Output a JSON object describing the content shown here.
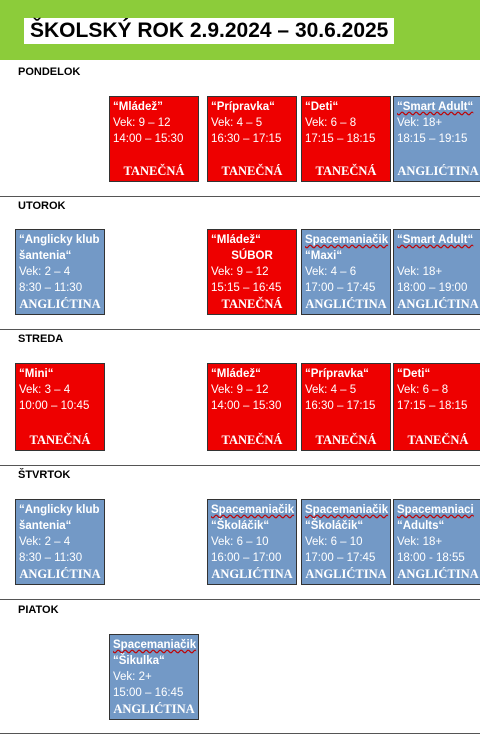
{
  "title": "ŠKOLSKÝ ROK 2.9.2024 – 30.6.2025",
  "days": [
    {
      "label": "PONDELOK",
      "classes": [
        {
          "name": "“Mládež”",
          "lines": [
            "Vek: 9 – 12",
            "14:00 – 15:30"
          ],
          "footer": "TANEČNÁ",
          "color": "red"
        },
        {
          "name": "“Prípravka“",
          "lines": [
            "Vek: 4 – 5",
            "16:30 – 17:15"
          ],
          "footer": "TANEČNÁ",
          "color": "red"
        },
        {
          "name": "“Deti“",
          "lines": [
            "Vek: 6 – 8",
            "17:15 – 18:15"
          ],
          "footer": "TANEČNÁ",
          "color": "red"
        },
        {
          "name": "“Smart Adult“",
          "lines": [
            "Vek: 18+",
            "18:15 – 19:15"
          ],
          "footer": "ANGLIĆTINA",
          "color": "blue"
        }
      ]
    },
    {
      "label": "UTOROK",
      "classes": [
        {
          "name": "“Anglicky klub",
          "lines": [
            "šantenia“",
            "Vek: 2 – 4",
            "8:30 – 11:30"
          ],
          "footer": "ANGLIĆTINA",
          "color": "blue"
        },
        {
          "name": "“Mládež“",
          "lines": [
            "SÚBOR",
            "Vek: 9 – 12",
            "15:15 – 16:45"
          ],
          "footer": "TANEČNÁ",
          "color": "red"
        },
        {
          "name": "Spacemaniačik",
          "lines": [
            "“Maxi“",
            "Vek: 4 – 6",
            "17:00 – 17:45"
          ],
          "footer": "ANGLIĆTINA",
          "color": "blue"
        },
        {
          "name": "“Smart Adult“",
          "lines": [
            "Vek: 18+",
            "18:00 – 19:00"
          ],
          "footer": "ANGLIĆTINA",
          "color": "blue"
        }
      ]
    },
    {
      "label": "STREDA",
      "classes": [
        {
          "name": "“Mini“",
          "lines": [
            "Vek: 3 – 4",
            "10:00 – 10:45"
          ],
          "footer": "TANEČNÁ",
          "color": "red"
        },
        {
          "name": "“Mládež“",
          "lines": [
            "Vek: 9 – 12",
            "14:00 – 15:30"
          ],
          "footer": "TANEČNÁ",
          "color": "red"
        },
        {
          "name": "“Prípravka“",
          "lines": [
            "Vek: 4 – 5",
            "16:30 – 17:15"
          ],
          "footer": "TANEČNÁ",
          "color": "red"
        },
        {
          "name": "“Deti“",
          "lines": [
            "Vek: 6 – 8",
            "17:15 – 18:15"
          ],
          "footer": "TANEČNÁ",
          "color": "red"
        }
      ]
    },
    {
      "label": "ŠTVRTOK",
      "classes": [
        {
          "name": "“Anglicky klub",
          "lines": [
            "šantenia“",
            "Vek: 2 – 4",
            "8:30 – 11:30"
          ],
          "footer": "ANGLIĆTINA",
          "color": "blue"
        },
        {
          "name": "Spacemaniačik",
          "lines": [
            "“Školáčik“",
            "Vek: 6 – 10",
            "16:00 – 17:00"
          ],
          "footer": "ANGLIĆTINA",
          "color": "blue"
        },
        {
          "name": "Spacemaniačik",
          "lines": [
            "“Školáčik“",
            "Vek: 6 – 10",
            "17:00 – 17:45"
          ],
          "footer": "ANGLIĆTINA",
          "color": "blue"
        },
        {
          "name": "Spacemaniaci",
          "lines": [
            "“Adults“",
            "Vek: 18+",
            "18:00 - 18:55"
          ],
          "footer": "ANGLIĆTINA",
          "color": "blue"
        }
      ]
    },
    {
      "label": "PIATOK",
      "classes": [
        {
          "name": "Spacemaniačik",
          "lines": [
            "“Šikulka“",
            "Vek: 2+",
            "15:00 – 16:45"
          ],
          "footer": "ANGLIĆTINA",
          "color": "blue"
        }
      ]
    }
  ]
}
